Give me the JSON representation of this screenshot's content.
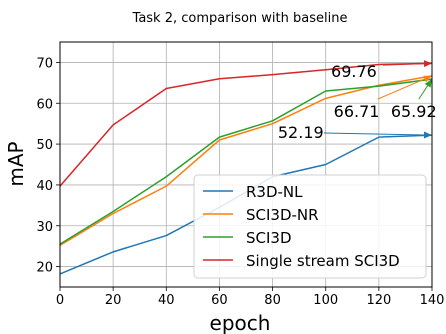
{
  "chart_data": {
    "type": "line",
    "title": "Task 2, comparison with baseline",
    "xlabel": "epoch",
    "ylabel": "mAP",
    "xlim": [
      0,
      140
    ],
    "ylim": [
      15,
      75
    ],
    "xticks": [
      0,
      20,
      40,
      60,
      80,
      100,
      120,
      140
    ],
    "yticks": [
      20,
      30,
      40,
      50,
      60,
      70
    ],
    "grid": true,
    "legend_position": "lower-right",
    "x": [
      0,
      20,
      40,
      60,
      80,
      100,
      120,
      140
    ],
    "series": [
      {
        "name": "R3D-NL",
        "color": "#1f77b4",
        "values": [
          18.2,
          23.6,
          27.6,
          34.5,
          42.0,
          45.0,
          51.7,
          52.19
        ]
      },
      {
        "name": "SCI3D-NR",
        "color": "#ff7f0e",
        "values": [
          25.2,
          33.0,
          39.7,
          51.0,
          55.0,
          61.2,
          64.4,
          66.71
        ]
      },
      {
        "name": "SCI3D",
        "color": "#2ca02c",
        "values": [
          25.5,
          33.5,
          42.0,
          51.7,
          55.7,
          63.0,
          64.2,
          65.92
        ]
      },
      {
        "name": "Single stream SCI3D",
        "color": "#d62728",
        "values": [
          39.7,
          54.7,
          63.6,
          66.0,
          67.0,
          68.2,
          69.5,
          69.76
        ]
      }
    ],
    "annotations": [
      {
        "text": "69.76",
        "series": "Single stream SCI3D",
        "text_x": 102,
        "text_y": 66.4,
        "arrow_to": [
          140,
          69.76
        ]
      },
      {
        "text": "66.71",
        "series": "SCI3D-NR",
        "text_x": 103,
        "text_y": 56.6,
        "arrow_to": [
          140,
          66.71
        ]
      },
      {
        "text": "65.92",
        "series": "SCI3D",
        "text_x": 124.5,
        "text_y": 56.6,
        "arrow_to": [
          140,
          65.92
        ]
      },
      {
        "text": "52.19",
        "series": "R3D-NL",
        "text_x": 82,
        "text_y": 51.5,
        "arrow_to": [
          140,
          52.19
        ]
      }
    ]
  }
}
